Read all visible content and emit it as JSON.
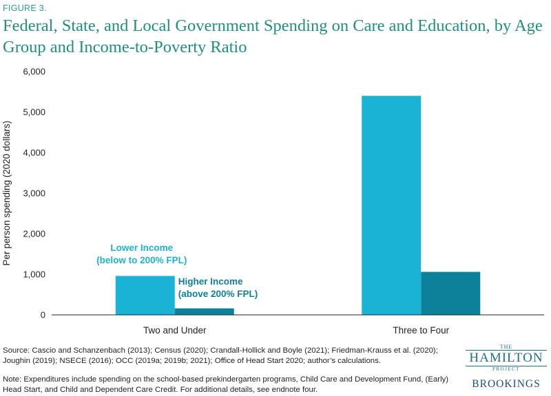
{
  "figure_label": "FIGURE 3.",
  "colors": {
    "lower": "#1ab3d6",
    "higher": "#0c8199",
    "title": "#1f8f82"
  },
  "chart_data": {
    "type": "bar",
    "title": "Federal, State, and Local Government Spending on Care and Education, by Age Group and Income-to-Poverty Ratio",
    "ylabel": "Per person spending (2020 dollars)",
    "xlabel": "",
    "ylim": [
      0,
      6000
    ],
    "yticks": [
      "0",
      "1,000",
      "2,000",
      "3,000",
      "4,000",
      "5,000",
      "6,000"
    ],
    "ytick_values": [
      0,
      1000,
      2000,
      3000,
      4000,
      5000,
      6000
    ],
    "grid": false,
    "categories": [
      "Two and Under",
      "Three to Four"
    ],
    "series": [
      {
        "name": "Lower Income (below to 200% FPL)",
        "label_lines": [
          "Lower Income",
          "(below to 200% FPL)"
        ],
        "values": [
          960,
          5400
        ]
      },
      {
        "name": "Higher Income (above 200% FPL)",
        "label_lines": [
          "Higher Income",
          "(above 200% FPL)"
        ],
        "values": [
          160,
          1060
        ]
      }
    ]
  },
  "source": "Source:  Cascio and Schanzenbach (2013); Census (2020); Crandall-Hollick and Boyle (2021); Friedman-Krauss et al. (2020); Joughin (2019); NSECE (2016); OCC (2019a; 2019b; 2021); Office of Head Start 2020; author’s calculations.",
  "note": "Note: Expenditures include spending on the school-based prekindergarten programs, Child Care and Development Fund, (Early) Head Start, and Child and Dependent Care Credit. For additional details, see endnote four.",
  "logo": {
    "the": "THE",
    "hamilton": "HAMILTON",
    "project": "PROJECT",
    "brookings": "BROOKINGS"
  }
}
